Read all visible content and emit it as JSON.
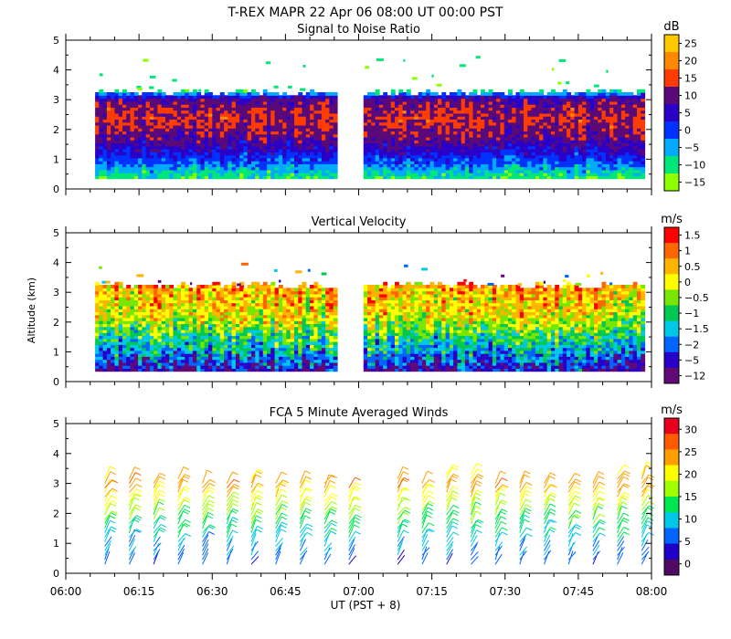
{
  "figure": {
    "title": "T-REX   MAPR 22 Apr 06   08:00 UT   00:00   PST",
    "xlabel": "UT  (PST + 8)",
    "ylabel": "Altitude (km)"
  },
  "chart_data": [
    {
      "type": "heatmap",
      "title": "Signal to Noise Ratio",
      "colorbar_unit": "dB",
      "colorbar_labels": [
        "25",
        "20",
        "15",
        "10",
        "5",
        "0",
        "−5",
        "−10",
        "−15"
      ],
      "colorbar_colors": [
        "#ffc800",
        "#ff8800",
        "#ff3c00",
        "#5a0a78",
        "#2a00c8",
        "#0032ff",
        "#00aaff",
        "#00e678",
        "#8cff00"
      ],
      "xlim": [
        0,
        120
      ],
      "ylim": [
        0,
        5
      ],
      "yticks": [
        "0",
        "1",
        "2",
        "3",
        "4",
        "5"
      ],
      "data_time_ranges_min": [
        [
          6,
          55
        ],
        [
          61,
          118
        ]
      ],
      "data_altitude_range_km": [
        0.35,
        3.3
      ],
      "snr_profile_dB": [
        [
          0.4,
          -12
        ],
        [
          0.8,
          -3
        ],
        [
          1.3,
          5
        ],
        [
          1.8,
          11
        ],
        [
          2.3,
          14
        ],
        [
          2.7,
          12
        ],
        [
          3.0,
          8
        ],
        [
          3.2,
          -8
        ],
        [
          3.3,
          -15
        ]
      ]
    },
    {
      "type": "heatmap",
      "title": "Vertical Velocity",
      "colorbar_unit": "m/s",
      "colorbar_labels": [
        "1.5",
        "1",
        "0.5",
        "0",
        "−0.5",
        "−1",
        "−1.5",
        "−2",
        "−5",
        "−12"
      ],
      "colorbar_colors": [
        "#ff0000",
        "#ff6600",
        "#ffb400",
        "#ffff00",
        "#78e600",
        "#00c850",
        "#00c8e6",
        "#0064ff",
        "#2800c8",
        "#600a78"
      ],
      "xlim": [
        0,
        120
      ],
      "ylim": [
        0,
        5
      ],
      "yticks": [
        "0",
        "1",
        "2",
        "3",
        "4",
        "5"
      ],
      "data_time_ranges_min": [
        [
          6,
          55
        ],
        [
          61,
          118
        ]
      ],
      "data_altitude_range_km": [
        0.35,
        3.3
      ],
      "velocity_profile_ms": [
        [
          0.4,
          -3
        ],
        [
          1.0,
          -1.8
        ],
        [
          1.6,
          -1.0
        ],
        [
          2.2,
          0.1
        ],
        [
          2.8,
          0.4
        ],
        [
          3.2,
          0.7
        ]
      ]
    },
    {
      "type": "wind_barbs",
      "title": "FCA 5 Minute Averaged Winds",
      "colorbar_unit": "m/s",
      "colorbar_labels": [
        "30",
        "25",
        "20",
        "15",
        "10",
        "5",
        "0"
      ],
      "colorbar_colors": [
        "#e6001e",
        "#ff5a00",
        "#ffa000",
        "#ffff00",
        "#a0ff00",
        "#00e650",
        "#00c8e6",
        "#0064ff",
        "#1e00c8",
        "#500a64"
      ],
      "xlim": [
        0,
        120
      ],
      "ylim": [
        0,
        5
      ],
      "yticks": [
        "0",
        "1",
        "2",
        "3",
        "4",
        "5"
      ],
      "xticks": [
        "06:00",
        "06:15",
        "06:30",
        "06:45",
        "07:00",
        "07:15",
        "07:30",
        "07:45",
        "08:00"
      ],
      "barb_times_min": [
        8,
        13,
        18,
        23,
        28,
        33,
        38,
        43,
        48,
        53,
        58,
        68,
        73,
        78,
        83,
        88,
        93,
        98,
        103,
        108,
        113,
        118
      ],
      "barb_tops_km": [
        3.2,
        3.2,
        3.0,
        3.2,
        3.1,
        3.0,
        3.2,
        3.0,
        3.1,
        3.0,
        2.9,
        3.2,
        3.1,
        3.3,
        3.3,
        3.1,
        3.0,
        3.0,
        3.0,
        3.0,
        3.4,
        3.3
      ],
      "speed_profile_ms": [
        [
          0.2,
          6
        ],
        [
          0.8,
          9
        ],
        [
          1.4,
          13
        ],
        [
          1.9,
          16
        ],
        [
          2.4,
          21
        ],
        [
          2.9,
          26
        ],
        [
          3.3,
          22
        ]
      ]
    }
  ]
}
